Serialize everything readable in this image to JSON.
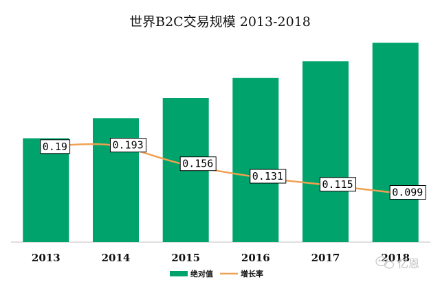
{
  "chart_data": {
    "type": "bar",
    "title": "世界B2C交易规模 2013-2018",
    "categories": [
      "2013",
      "2014",
      "2015",
      "2016",
      "2017",
      "2018"
    ],
    "series": [
      {
        "name": "绝对值",
        "type": "bar",
        "color": "#00a36c",
        "values": [
          1.24,
          1.48,
          1.72,
          1.96,
          2.16,
          2.38
        ]
      },
      {
        "name": "增长率",
        "type": "line",
        "color": "#f0a050",
        "values": [
          0.19,
          0.193,
          0.156,
          0.131,
          0.115,
          0.099
        ],
        "labels": [
          "0.19",
          "0.193",
          "0.156",
          "0.131",
          "0.115",
          "0.099"
        ]
      }
    ],
    "xlabel": "",
    "ylabel": "",
    "ylim": [
      0,
      2.4
    ],
    "y2lim": [
      0,
      0.4
    ],
    "grid": false,
    "legend_position": "bottom",
    "watermark": "亿恩"
  }
}
